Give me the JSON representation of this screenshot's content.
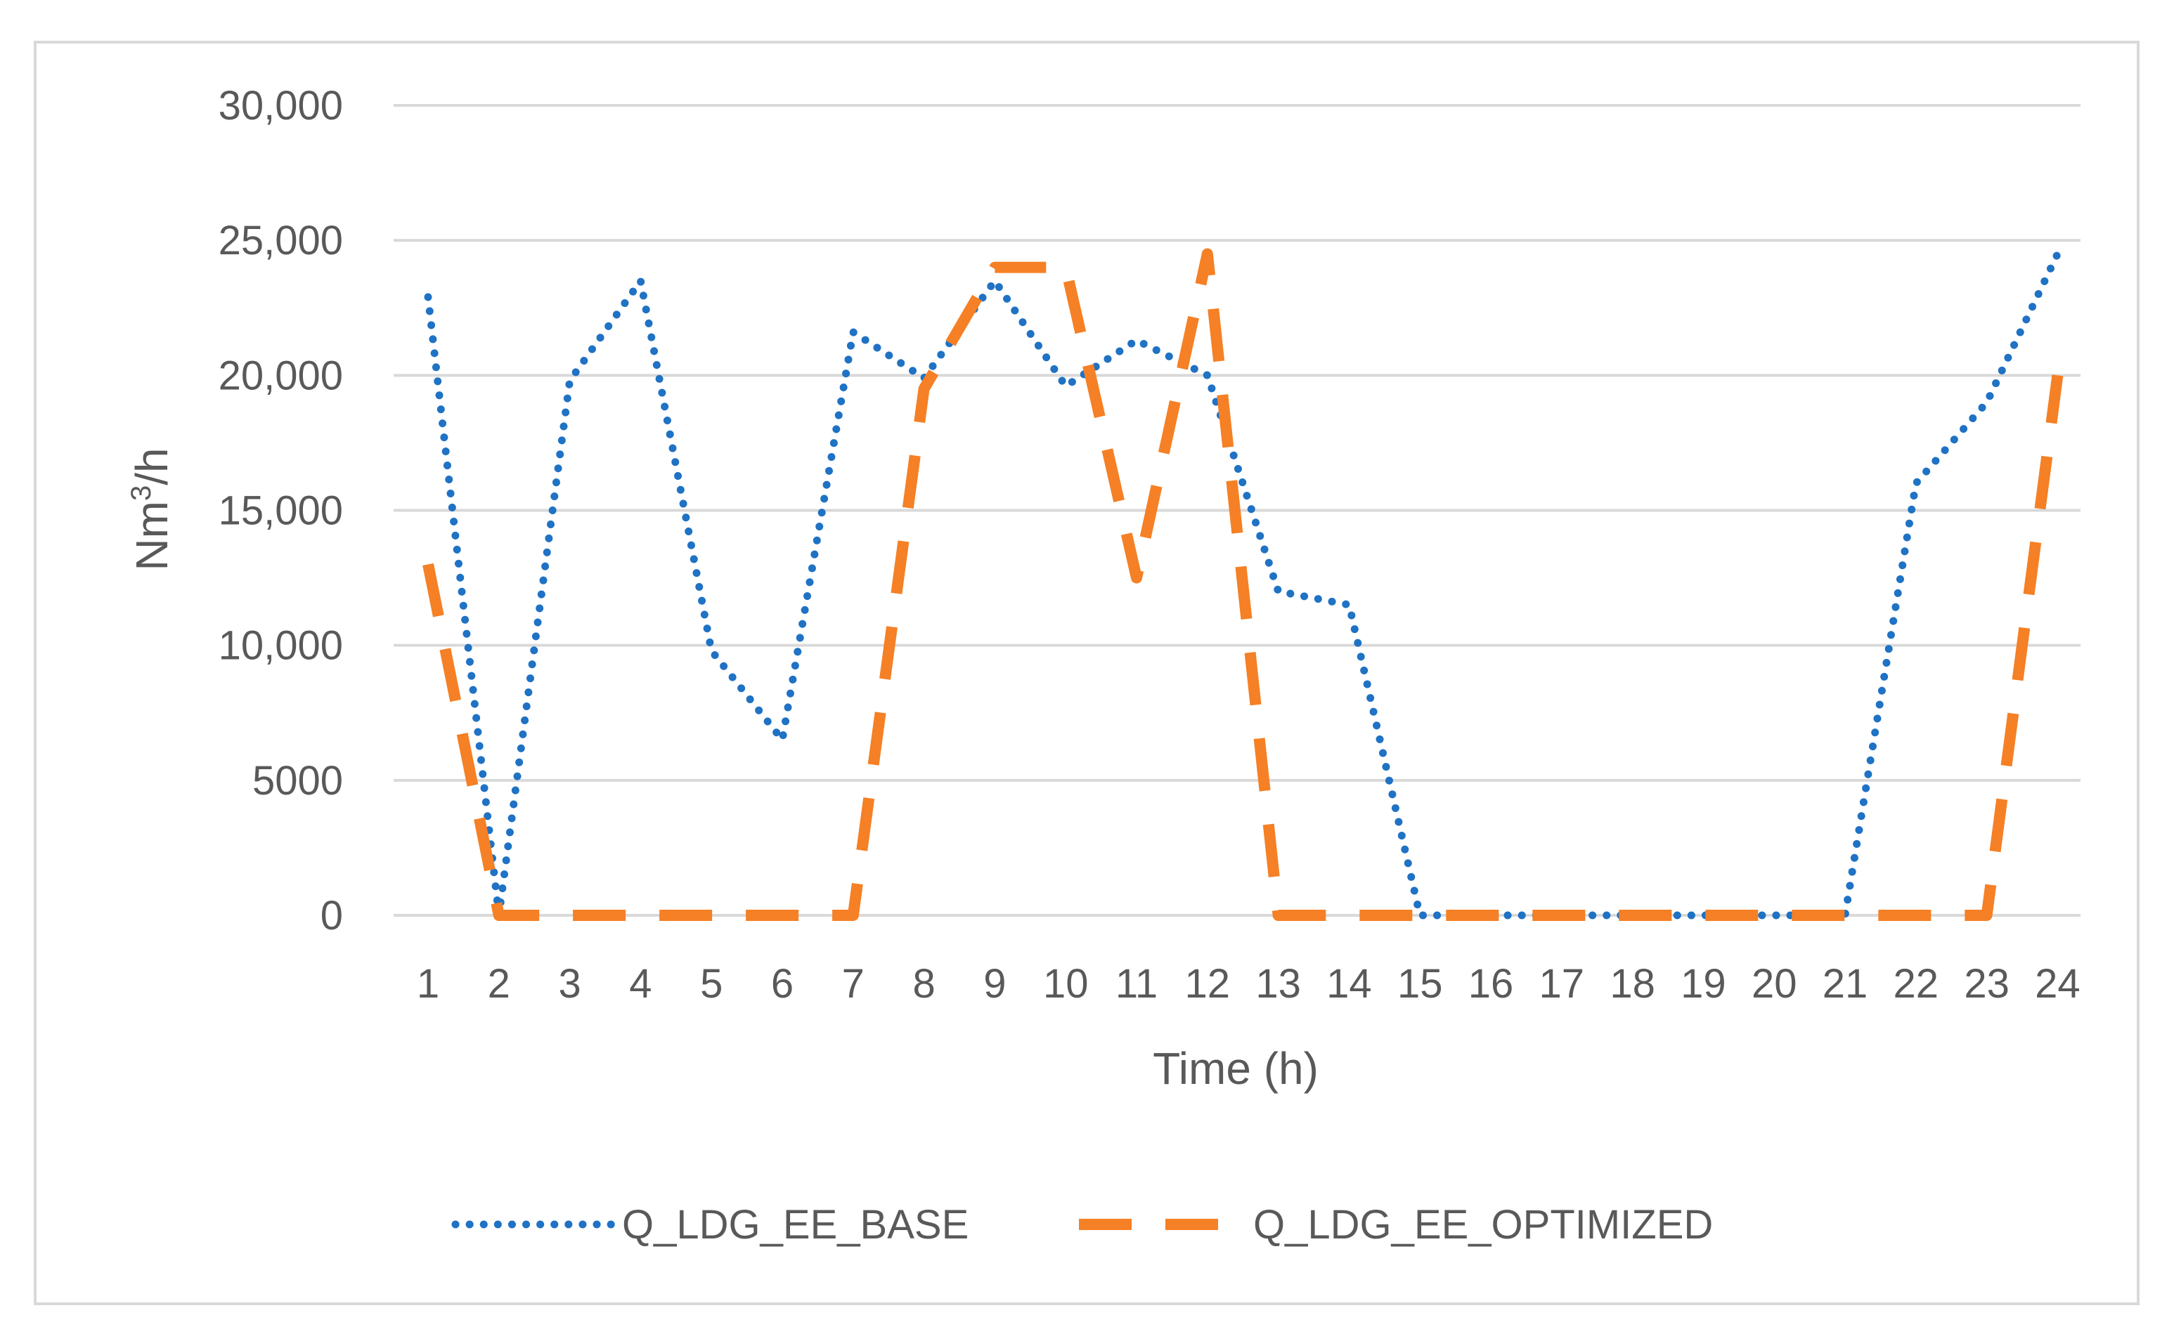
{
  "chart_data": {
    "type": "line",
    "title": "",
    "xlabel": "Time (h)",
    "ylabel": "Nm3/h",
    "ylabel_base": "Nm",
    "ylabel_sup": "3",
    "ylabel_tail": "/h",
    "ylim": [
      0,
      30000
    ],
    "y_ticks": [
      0,
      5000,
      10000,
      15000,
      20000,
      25000,
      30000
    ],
    "y_tick_labels": [
      "0",
      "5000",
      "10,000",
      "15,000",
      "20,000",
      "25,000",
      "30,000"
    ],
    "x": [
      "1",
      "2",
      "3",
      "4",
      "5",
      "6",
      "7",
      "8",
      "9",
      "10",
      "11",
      "12",
      "13",
      "14",
      "15",
      "16",
      "17",
      "18",
      "19",
      "20",
      "21",
      "22",
      "23",
      "24"
    ],
    "grid": true,
    "legend_position": "bottom",
    "series": [
      {
        "name": "Q_LDG_EE_BASE",
        "color": "#1f72c4",
        "style": "dotted",
        "values": [
          22900,
          0,
          19800,
          23500,
          9800,
          6500,
          21600,
          19900,
          23500,
          19600,
          21300,
          20000,
          12000,
          11500,
          0,
          0,
          0,
          0,
          0,
          0,
          0,
          16000,
          19000,
          24500
        ]
      },
      {
        "name": "Q_LDG_EE_OPTIMIZED",
        "color": "#f58025",
        "style": "dashed",
        "values": [
          13000,
          0,
          0,
          0,
          0,
          0,
          0,
          19500,
          24000,
          24000,
          12500,
          24500,
          0,
          0,
          0,
          0,
          0,
          0,
          0,
          0,
          0,
          0,
          0,
          20000
        ]
      }
    ]
  }
}
